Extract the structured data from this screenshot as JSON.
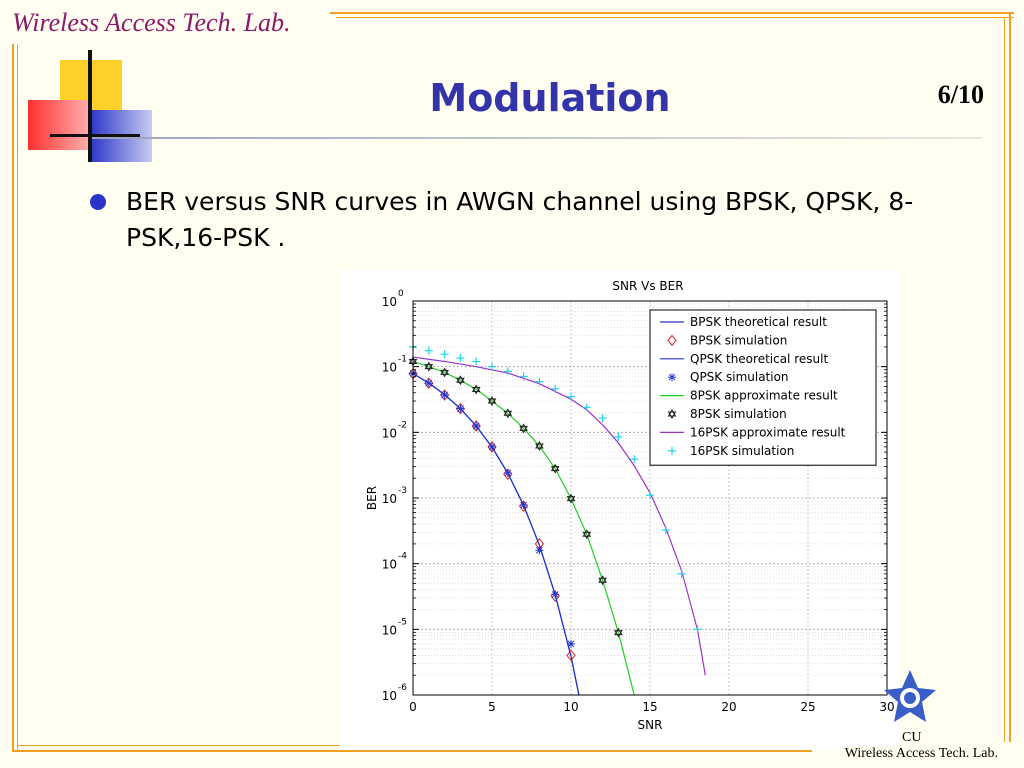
{
  "slide": {
    "header_lab": "Wireless Access Tech. Lab.",
    "footer_lab": "Wireless Access Tech. Lab.",
    "footer_logo_text": "CU",
    "page_number": "6/10",
    "title": "Modulation",
    "bullet": "BER versus SNR curves in AWGN channel using BPSK, QPSK, 8-PSK,16-PSK ."
  },
  "colors": {
    "title": "#3333aa",
    "header_lab": "#8b1a6b",
    "frame": "#f0a020"
  },
  "chart_data": {
    "type": "line",
    "title": "SNR Vs BER",
    "xlabel": "SNR",
    "ylabel": "BER",
    "xlim": [
      0,
      30
    ],
    "ylim": [
      1e-06,
      1
    ],
    "yscale": "log",
    "grid": true,
    "legend_position": "top-right",
    "x_ticks": [
      "0",
      "5",
      "10",
      "15",
      "20",
      "25",
      "30"
    ],
    "y_tick_base": "10",
    "y_tick_exponents": [
      "0",
      "-1",
      "-2",
      "-3",
      "-4",
      "-5",
      "-6"
    ],
    "series": [
      {
        "name": "BPSK  theoretical result",
        "style": "line",
        "color": "#2233cc",
        "x": [
          0,
          1,
          2,
          3,
          4,
          5,
          6,
          7,
          8,
          9,
          10,
          10.5
        ],
        "y": [
          0.0786,
          0.0563,
          0.0375,
          0.0229,
          0.0125,
          0.00595,
          0.00239,
          0.000773,
          0.000191,
          3.36e-05,
          3.87e-06,
          1e-06
        ]
      },
      {
        "name": "BPSK simulation",
        "style": "diamond",
        "color": "#dd2222",
        "x": [
          0,
          1,
          2,
          3,
          4,
          5,
          6,
          7,
          8,
          9,
          10
        ],
        "y": [
          0.078,
          0.056,
          0.037,
          0.023,
          0.0125,
          0.006,
          0.0023,
          0.00075,
          0.0002,
          3.2e-05,
          4e-06
        ]
      },
      {
        "name": "QPSK  theoretical result",
        "style": "line",
        "color": "#2233cc",
        "x": [
          0,
          1,
          2,
          3,
          4,
          5,
          6,
          7,
          8,
          9,
          10,
          10.5
        ],
        "y": [
          0.0786,
          0.0563,
          0.0375,
          0.0229,
          0.0125,
          0.00595,
          0.00239,
          0.000773,
          0.000191,
          3.36e-05,
          3.87e-06,
          1e-06
        ]
      },
      {
        "name": "QPSK simulation",
        "style": "star",
        "color": "#2233cc",
        "x": [
          0,
          1,
          2,
          3,
          4,
          5,
          6,
          7,
          8,
          9,
          10
        ],
        "y": [
          0.079,
          0.056,
          0.037,
          0.023,
          0.0125,
          0.006,
          0.0024,
          0.00078,
          0.00016,
          3.4e-05,
          6e-06
        ]
      },
      {
        "name": "8PSK approximate result",
        "style": "line",
        "color": "#22cc22",
        "x": [
          0,
          1,
          2,
          3,
          4,
          5,
          6,
          7,
          8,
          9,
          10,
          11,
          12,
          13,
          14
        ],
        "y": [
          0.12,
          0.1,
          0.082,
          0.062,
          0.045,
          0.03,
          0.0195,
          0.0115,
          0.0062,
          0.0028,
          0.00098,
          0.00028,
          5.6e-05,
          8.9e-06,
          1e-06
        ]
      },
      {
        "name": "8PSK simulation",
        "style": "hexagram",
        "color": "#222222",
        "x": [
          0,
          1,
          2,
          3,
          4,
          5,
          6,
          7,
          8,
          9,
          10,
          11,
          12,
          13
        ],
        "y": [
          0.12,
          0.1,
          0.082,
          0.062,
          0.045,
          0.03,
          0.0195,
          0.0115,
          0.0062,
          0.0028,
          0.00098,
          0.00028,
          5.6e-05,
          8.9e-06
        ]
      },
      {
        "name": "16PSK approximate result",
        "style": "line",
        "color": "#9933cc",
        "x": [
          0,
          2,
          4,
          6,
          8,
          10,
          11,
          12,
          13,
          14,
          15,
          16,
          17,
          18,
          18.5
        ],
        "y": [
          0.14,
          0.12,
          0.1,
          0.08,
          0.055,
          0.032,
          0.022,
          0.013,
          0.0069,
          0.0031,
          0.0012,
          0.00035,
          7.8e-05,
          1e-05,
          2e-06
        ]
      },
      {
        "name": "16PSK simulation",
        "style": "plus",
        "color": "#22d4e8",
        "x": [
          0,
          1,
          2,
          3,
          4,
          5,
          6,
          7,
          8,
          9,
          10,
          11,
          12,
          13,
          14,
          15,
          16,
          17,
          18
        ],
        "y": [
          0.2,
          0.175,
          0.155,
          0.135,
          0.12,
          0.1,
          0.085,
          0.071,
          0.059,
          0.046,
          0.035,
          0.024,
          0.0165,
          0.0085,
          0.0039,
          0.0011,
          0.000325,
          7e-05,
          1e-05
        ]
      }
    ]
  }
}
